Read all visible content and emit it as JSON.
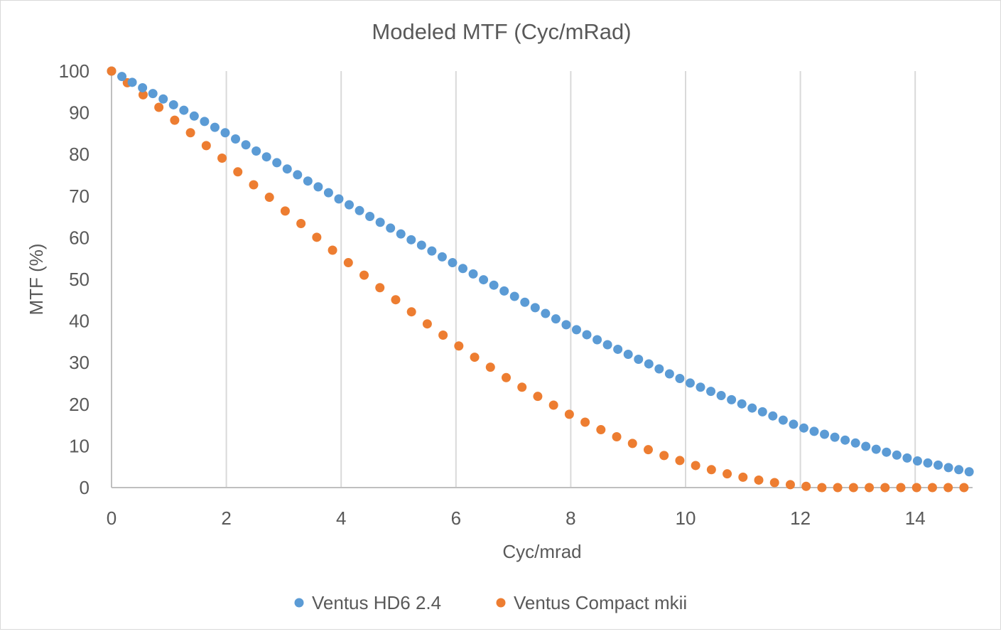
{
  "chart_data": {
    "type": "scatter",
    "title": "Modeled MTF (Cyc/mRad)",
    "xlabel": "Cyc/mrad",
    "ylabel": "MTF (%)",
    "xlim": [
      0,
      15
    ],
    "ylim": [
      0,
      100
    ],
    "xticks": [
      0,
      2,
      4,
      6,
      8,
      10,
      12,
      14
    ],
    "yticks": [
      0,
      10,
      20,
      30,
      40,
      50,
      60,
      70,
      80,
      90,
      100
    ],
    "grid": {
      "vertical": true,
      "horizontal": false
    },
    "legend_position": "bottom",
    "series": [
      {
        "name": "Ventus HD6 2.4",
        "color": "#5B9BD5",
        "x": [
          0,
          0.18,
          0.36,
          0.54,
          0.72,
          0.9,
          1.08,
          1.26,
          1.44,
          1.62,
          1.8,
          1.98,
          2.16,
          2.34,
          2.52,
          2.7,
          2.88,
          3.06,
          3.24,
          3.42,
          3.6,
          3.78,
          3.96,
          4.14,
          4.32,
          4.5,
          4.68,
          4.86,
          5.04,
          5.22,
          5.4,
          5.58,
          5.76,
          5.94,
          6.12,
          6.3,
          6.48,
          6.66,
          6.84,
          7.02,
          7.2,
          7.38,
          7.56,
          7.74,
          7.92,
          8.1,
          8.28,
          8.46,
          8.64,
          8.82,
          9,
          9.18,
          9.36,
          9.54,
          9.72,
          9.9,
          10.08,
          10.26,
          10.44,
          10.62,
          10.8,
          10.98,
          11.16,
          11.34,
          11.52,
          11.7,
          11.88,
          12.06,
          12.24,
          12.42,
          12.6,
          12.78,
          12.96,
          13.14,
          13.32,
          13.5,
          13.68,
          13.86,
          14.04,
          14.22,
          14.4,
          14.58,
          14.76,
          14.94
        ],
        "y": [
          100,
          98.7,
          97.3,
          96.0,
          94.6,
          93.3,
          91.9,
          90.6,
          89.2,
          87.9,
          86.5,
          85.2,
          83.7,
          82.3,
          80.8,
          79.4,
          78.0,
          76.5,
          75.1,
          73.6,
          72.2,
          70.8,
          69.3,
          67.9,
          66.5,
          65.1,
          63.7,
          62.3,
          60.9,
          59.5,
          58.2,
          56.8,
          55.4,
          54.0,
          52.6,
          51.3,
          49.9,
          48.6,
          47.2,
          45.9,
          44.5,
          43.2,
          41.8,
          40.5,
          39.1,
          37.9,
          36.7,
          35.5,
          34.3,
          33.2,
          32.0,
          30.8,
          29.7,
          28.5,
          27.3,
          26.2,
          25.1,
          24.1,
          23.1,
          22.1,
          21.1,
          20.1,
          19.1,
          18.2,
          17.2,
          16.2,
          15.2,
          14.3,
          13.5,
          12.8,
          12.1,
          11.4,
          10.7,
          9.9,
          9.2,
          8.5,
          7.8,
          7.1,
          6.4,
          5.9,
          5.4,
          4.8,
          4.3,
          3.8
        ]
      },
      {
        "name": "Ventus Compact mkii",
        "color": "#ED7D31",
        "x": [
          0,
          0.275,
          0.55,
          0.825,
          1.1,
          1.375,
          1.65,
          1.925,
          2.2,
          2.475,
          2.75,
          3.025,
          3.3,
          3.575,
          3.85,
          4.125,
          4.4,
          4.675,
          4.95,
          5.225,
          5.5,
          5.775,
          6.05,
          6.325,
          6.6,
          6.875,
          7.15,
          7.425,
          7.7,
          7.975,
          8.25,
          8.525,
          8.8,
          9.075,
          9.35,
          9.625,
          9.9,
          10.175,
          10.45,
          10.725,
          11,
          11.275,
          11.55,
          11.825,
          12.1,
          12.375,
          12.65,
          12.925,
          13.2,
          13.475,
          13.75,
          14.025,
          14.3,
          14.575,
          14.85
        ],
        "y": [
          100,
          97.2,
          94.3,
          91.3,
          88.2,
          85.2,
          82.1,
          79.1,
          75.8,
          72.7,
          69.7,
          66.4,
          63.4,
          60.1,
          57.0,
          54.0,
          51.0,
          48.0,
          45.1,
          42.2,
          39.3,
          36.6,
          34.0,
          31.3,
          28.9,
          26.4,
          24.1,
          21.9,
          19.8,
          17.6,
          15.7,
          13.9,
          12.2,
          10.6,
          9.1,
          7.7,
          6.5,
          5.3,
          4.3,
          3.3,
          2.5,
          1.8,
          1.2,
          0.7,
          0.3,
          0,
          0,
          0,
          0,
          0,
          0,
          0,
          0,
          0,
          0
        ]
      }
    ]
  }
}
